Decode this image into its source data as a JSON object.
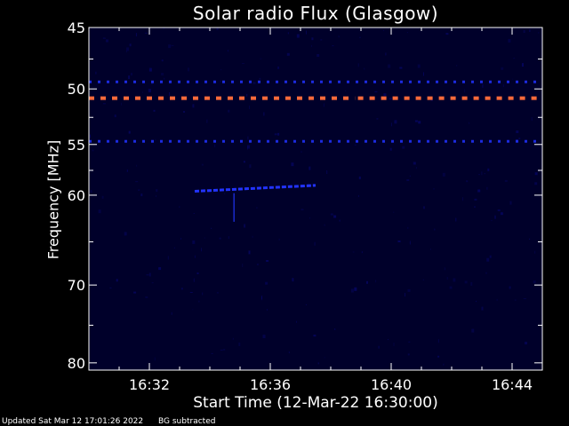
{
  "header": {
    "title": "Solar radio Flux (Glasgow)"
  },
  "footer": {
    "updated": "Updated Sat Mar 12 17:01:26 2022",
    "note": "BG subtracted"
  },
  "colors": {
    "background": "#000000",
    "axes": "#ffffff",
    "plot_bg": "#00002a",
    "weak_band": "#1a2aff",
    "strong_band": "#ff6a3a"
  },
  "chart_data": {
    "type": "heatmap",
    "title": "Solar radio Flux (Glasgow)",
    "xlabel": "Start Time (12-Mar-22 16:30:00)",
    "ylabel": "Frequency [MHz]",
    "x_unit": "minutes after 16:30 UT",
    "xlim": [
      0,
      15
    ],
    "ylim": [
      45,
      81
    ],
    "y_scale": "log",
    "x_ticks": [
      {
        "value": 2,
        "label": "16:32"
      },
      {
        "value": 6,
        "label": "16:36"
      },
      {
        "value": 10,
        "label": "16:40"
      },
      {
        "value": 14,
        "label": "16:44"
      }
    ],
    "y_ticks": [
      {
        "value": 45,
        "label": "45"
      },
      {
        "value": 50,
        "label": "50"
      },
      {
        "value": 55,
        "label": "55"
      },
      {
        "value": 60,
        "label": "60"
      },
      {
        "value": 70,
        "label": "70"
      },
      {
        "value": 80,
        "label": "80"
      }
    ],
    "bands": [
      {
        "freq": 49.4,
        "x_start": 0,
        "x_end": 15,
        "intensity": "weak",
        "color": "#2233ff"
      },
      {
        "freq": 50.8,
        "x_start": 0,
        "x_end": 8.8,
        "intensity": "strong",
        "color": "#ff6a3a"
      },
      {
        "freq": 50.8,
        "x_start": 8.9,
        "x_end": 15,
        "intensity": "strong",
        "color": "#ff6a3a"
      },
      {
        "freq": 54.7,
        "x_start": 0,
        "x_end": 15,
        "intensity": "weak",
        "color": "#2233ff"
      }
    ],
    "features": [
      {
        "x_start": 3.5,
        "x_end": 7.5,
        "freq_start": 59.6,
        "freq_end": 59.0,
        "intensity": "weak",
        "color": "#2233ff"
      },
      {
        "x": 4.8,
        "freq_start": 59.8,
        "freq_end": 62.8,
        "intensity": "faint",
        "color": "#1a2acc"
      }
    ]
  }
}
